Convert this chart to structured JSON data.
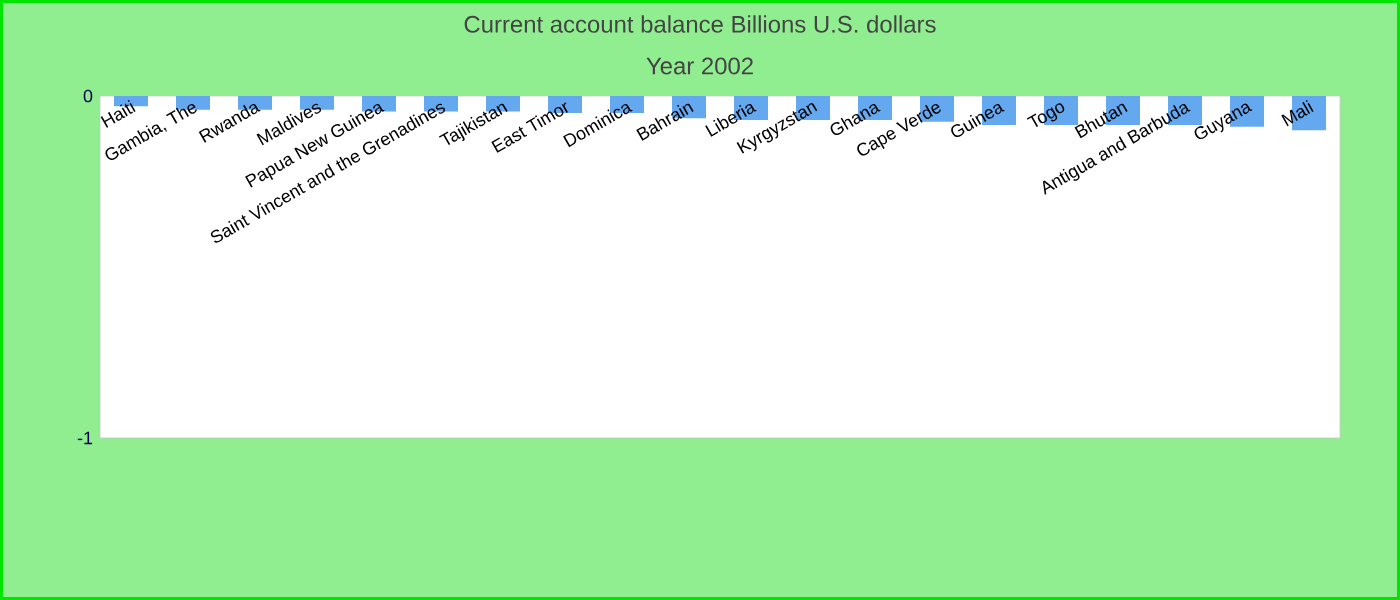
{
  "chart_data": {
    "type": "bar",
    "title": "Current account balance Billions U.S. dollars",
    "subtitle": "Year 2002",
    "categories": [
      "Haiti",
      "Gambia, The",
      "Rwanda",
      "Maldives",
      "Papua New Guinea",
      "Saint Vincent and the Grenadines",
      "Tajikistan",
      "East Timor",
      "Dominica",
      "Bahrain",
      "Liberia",
      "Kyrgyzstan",
      "Ghana",
      "Cape Verde",
      "Guinea",
      "Togo",
      "Bhutan",
      "Antigua and Barbuda",
      "Guyana",
      "Mali"
    ],
    "values": [
      -0.03,
      -0.04,
      -0.04,
      -0.04,
      -0.045,
      -0.045,
      -0.045,
      -0.05,
      -0.05,
      -0.065,
      -0.07,
      -0.07,
      -0.07,
      -0.075,
      -0.085,
      -0.085,
      -0.085,
      -0.085,
      -0.09,
      -0.1
    ],
    "color": "#64a8f0",
    "ylim": [
      -1,
      0
    ],
    "yticks": [
      -1,
      0
    ]
  }
}
